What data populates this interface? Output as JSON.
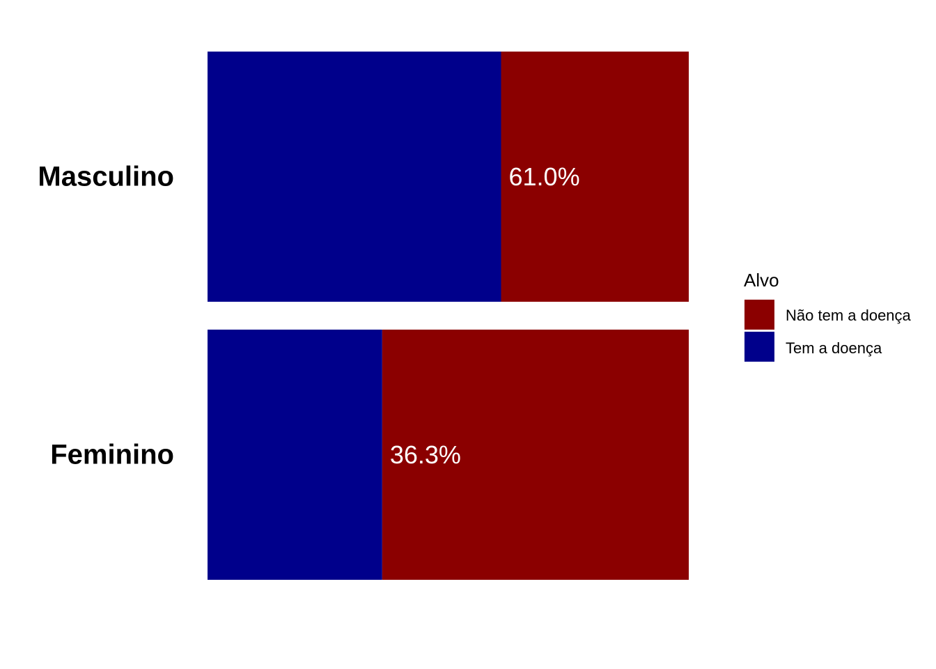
{
  "chart_data": {
    "type": "bar",
    "orientation": "horizontal",
    "stacked": true,
    "normalized": true,
    "categories": [
      "Masculino",
      "Feminino"
    ],
    "series": [
      {
        "name": "Tem a doença",
        "color": "#00008B",
        "values": [
          61.0,
          36.3
        ]
      },
      {
        "name": "Não tem a doença",
        "color": "#8B0000",
        "values": [
          39.0,
          63.7
        ]
      }
    ],
    "data_labels": [
      "61.0%",
      "36.3%"
    ],
    "legend": {
      "title": "Alvo",
      "placement": "right",
      "entries": [
        {
          "label": "Não tem a doença",
          "color": "#8B0000"
        },
        {
          "label": "Tem a doença",
          "color": "#00008B"
        }
      ]
    },
    "xlim": [
      0,
      100
    ],
    "grid": false,
    "axes_visible": false
  }
}
